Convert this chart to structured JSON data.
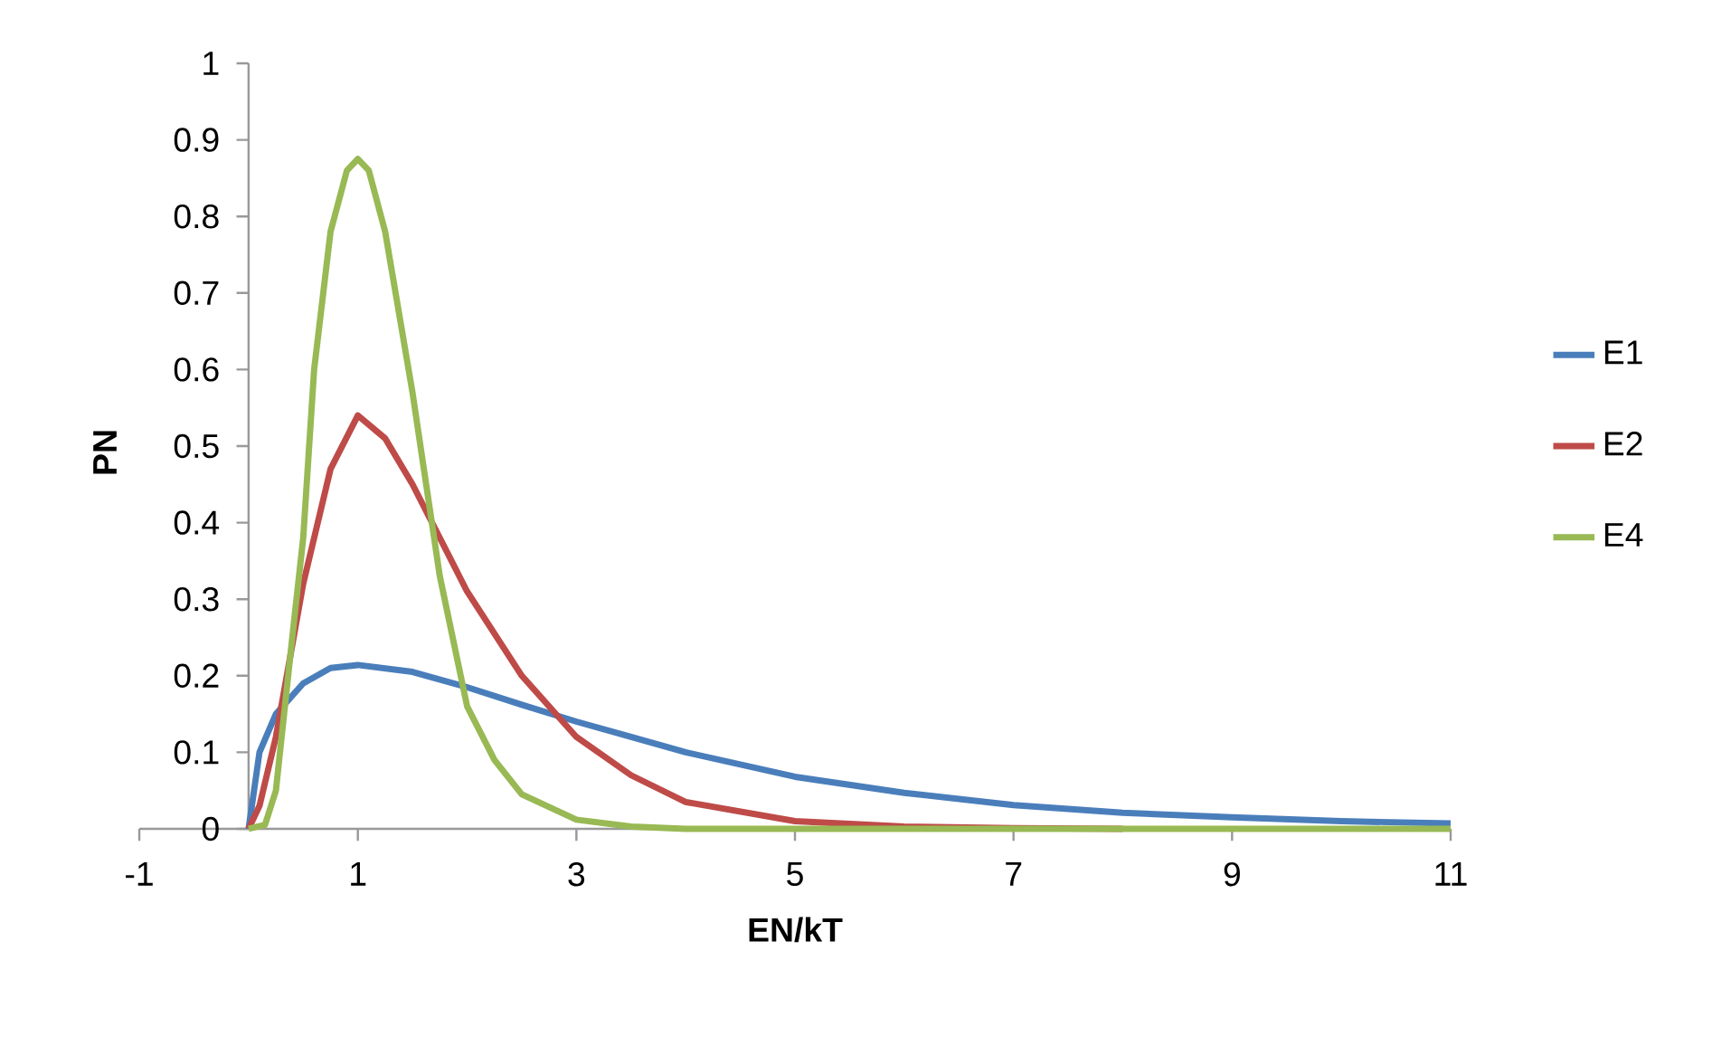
{
  "chart_data": {
    "type": "line",
    "xlabel": "EN/kT",
    "ylabel": "PN",
    "xlim": [
      -1,
      11
    ],
    "xticks": [
      -1,
      1,
      3,
      5,
      7,
      9,
      11
    ],
    "ylim": [
      0,
      1
    ],
    "yticks": [
      0,
      0.1,
      0.2,
      0.3,
      0.4,
      0.5,
      0.6,
      0.7,
      0.8,
      0.9,
      1
    ],
    "grid": false,
    "legend": "right",
    "marker": "none",
    "line_style": "solid",
    "series": [
      {
        "name": "E1",
        "color": "#4a7ebb",
        "x": [
          0,
          0.1,
          0.25,
          0.5,
          0.75,
          1,
          1.5,
          2,
          2.5,
          3,
          3.5,
          4,
          5,
          6,
          7,
          8,
          9,
          10,
          11
        ],
        "values": [
          0,
          0.1,
          0.15,
          0.19,
          0.21,
          0.214,
          0.205,
          0.185,
          0.162,
          0.14,
          0.12,
          0.1,
          0.068,
          0.047,
          0.031,
          0.021,
          0.015,
          0.01,
          0.007
        ]
      },
      {
        "name": "E2",
        "color": "#be4b48",
        "x": [
          0,
          0.1,
          0.25,
          0.5,
          0.75,
          1,
          1.25,
          1.5,
          2,
          2.5,
          3,
          3.5,
          4,
          5,
          6,
          7,
          8
        ],
        "values": [
          0,
          0.03,
          0.12,
          0.32,
          0.47,
          0.54,
          0.51,
          0.45,
          0.31,
          0.2,
          0.12,
          0.07,
          0.035,
          0.01,
          0.003,
          0.001,
          0
        ]
      },
      {
        "name": "E4",
        "color": "#98b954",
        "x": [
          0,
          0.15,
          0.25,
          0.4,
          0.5,
          0.6,
          0.75,
          0.9,
          1,
          1.1,
          1.25,
          1.5,
          1.75,
          2,
          2.25,
          2.5,
          3,
          3.5,
          4,
          5,
          6,
          7,
          8,
          9,
          10,
          11
        ],
        "values": [
          0,
          0.005,
          0.05,
          0.25,
          0.38,
          0.6,
          0.78,
          0.86,
          0.875,
          0.86,
          0.78,
          0.57,
          0.33,
          0.16,
          0.09,
          0.045,
          0.012,
          0.003,
          0,
          0,
          0,
          0,
          0,
          0,
          0,
          0
        ]
      }
    ]
  }
}
